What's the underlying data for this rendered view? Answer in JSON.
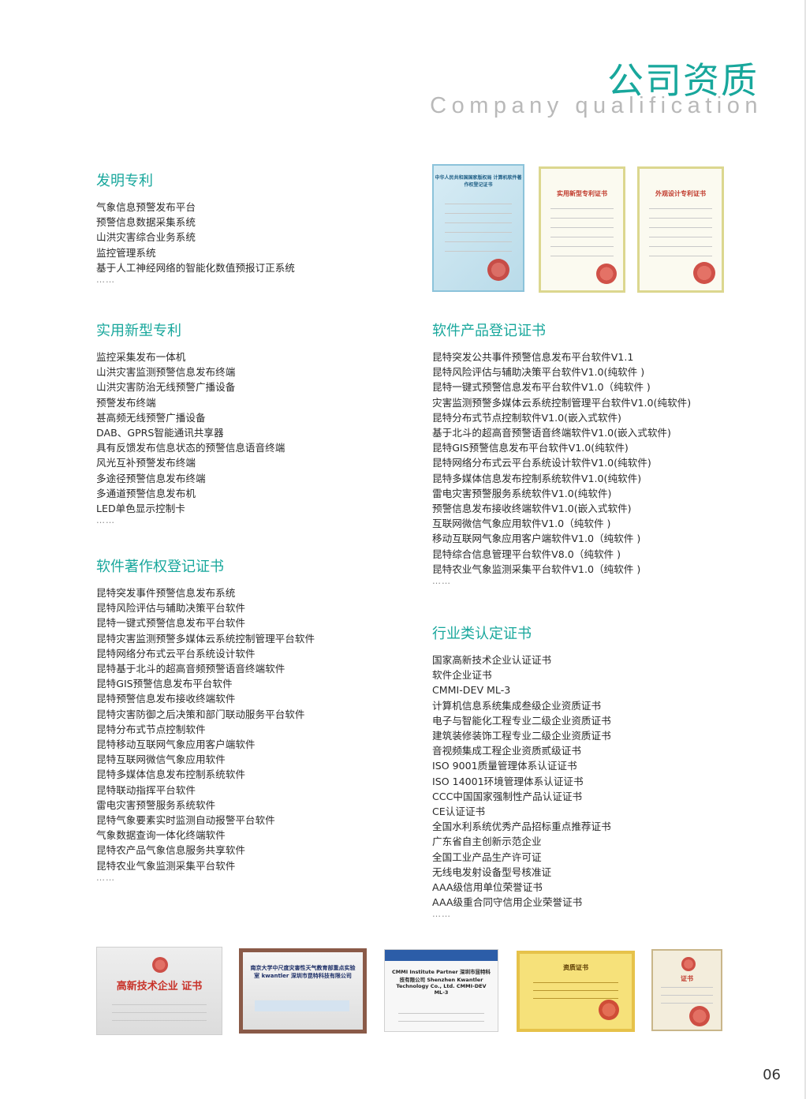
{
  "header": {
    "title": "公司资质",
    "subtitle": "Company qualification"
  },
  "sections": {
    "invention_patents": {
      "title": "发明专利",
      "items": [
        "气象信息预警发布平台",
        "预警信息数据采集系统",
        "山洪灾害综合业务系统",
        "监控管理系统",
        "基于人工神经网络的智能化数值预报订正系统"
      ],
      "more": "……"
    },
    "utility_patents": {
      "title": "实用新型专利",
      "items": [
        "监控采集发布一体机",
        "山洪灾害监测预警信息发布终端",
        "山洪灾害防治无线预警广播设备",
        "预警发布终端",
        "甚高频无线预警广播设备",
        "DAB、GPRS智能通讯共享器",
        "具有反馈发布信息状态的预警信息语音终端",
        "风光互补预警发布终端",
        "多途径预警信息发布终端",
        "多通道预警信息发布机",
        "LED单色显示控制卡"
      ],
      "more": "……"
    },
    "software_copyright": {
      "title": "软件著作权登记证书",
      "items": [
        "昆特突发事件预警信息发布系统",
        "昆特风险评估与辅助决策平台软件",
        "昆特一键式预警信息发布平台软件",
        "昆特灾害监测预警多媒体云系统控制管理平台软件",
        "昆特网络分布式云平台系统设计软件",
        "昆特基于北斗的超高音频预警语音终端软件",
        "昆特GIS预警信息发布平台软件",
        "昆特预警信息发布接收终端软件",
        "昆特灾害防御之后决策和部门联动服务平台软件",
        "昆特分布式节点控制软件",
        "昆特移动互联网气象应用客户端软件",
        "昆特互联网微信气象应用软件",
        "昆特多媒体信息发布控制系统软件",
        "昆特联动指挥平台软件",
        "雷电灾害预警服务系统软件",
        "昆特气象要素实时监测自动报警平台软件",
        "气象数据查询一体化终端软件",
        "昆特农产品气象信息服务共享软件",
        "昆特农业气象监测采集平台软件"
      ],
      "more": "……"
    },
    "software_products": {
      "title": "软件产品登记证书",
      "items": [
        "昆特突发公共事件预警信息发布平台软件V1.1",
        "昆特风险评估与辅助决策平台软件V1.0(纯软件 )",
        "昆特一键式预警信息发布平台软件V1.0（纯软件 )",
        "灾害监测预警多媒体云系统控制管理平台软件V1.0(纯软件)",
        "昆特分布式节点控制软件V1.0(嵌入式软件)",
        "基于北斗的超高音预警语音终端软件V1.0(嵌入式软件)",
        "昆特GIS预警信息发布平台软件V1.0(纯软件)",
        "昆特网络分布式云平台系统设计软件V1.0(纯软件)",
        "昆特多媒体信息发布控制系统软件V1.0(纯软件)",
        "雷电灾害预警服务系统软件V1.0(纯软件)",
        "预警信息发布接收终端软件V1.0(嵌入式软件)",
        "互联网微信气象应用软件V1.0（纯软件 )",
        "移动互联网气象应用客户端软件V1.0（纯软件 )",
        "昆特综合信息管理平台软件V8.0（纯软件 )",
        "昆特农业气象监测采集平台软件V1.0（纯软件 )"
      ],
      "more": "……"
    },
    "industry_certs": {
      "title": "行业类认定证书",
      "items": [
        "国家高新技术企业认证证书",
        "软件企业证书",
        "CMMI-DEV ML-3",
        "计算机信息系统集成叁级企业资质证书",
        "电子与智能化工程专业二级企业资质证书",
        "建筑装修装饰工程专业二级企业资质证书",
        "音视频集成工程企业资质贰级证书",
        "ISO 9001质量管理体系认证证书",
        "ISO 14001环境管理体系认证证书",
        "CCC中国国家强制性产品认证证书",
        "CE认证证书",
        "全国水利系统优秀产品招标重点推荐证书",
        "广东省自主创新示范企业",
        "全国工业产品生产许可证",
        "无线电发射设备型号核准证",
        "AAA级信用单位荣誉证书",
        "AAA级重合同守信用企业荣誉证书"
      ],
      "more": "……"
    }
  },
  "top_certificates": [
    {
      "label": "中华人民共和国国家版权局 计算机软件著作权登记证书"
    },
    {
      "label": "实用新型专利证书"
    },
    {
      "label": "外观设计专利证书"
    }
  ],
  "bottom_certificates": [
    {
      "label": "高新技术企业 证书"
    },
    {
      "label": "南京大学中尺度灾害性天气教育部重点实验室 kwantler 深圳市昆特科技有限公司"
    },
    {
      "label": "CMMI Institute Partner 深圳市昆特科技有限公司 Shenzhen Kwantler Technology Co., Ltd. CMMI-DEV ML-3"
    },
    {
      "label": "资质证书"
    },
    {
      "label": "证书"
    }
  ],
  "page_number": "06",
  "colors": {
    "accent": "#18a79c",
    "subtitle": "#b9b9b9"
  }
}
